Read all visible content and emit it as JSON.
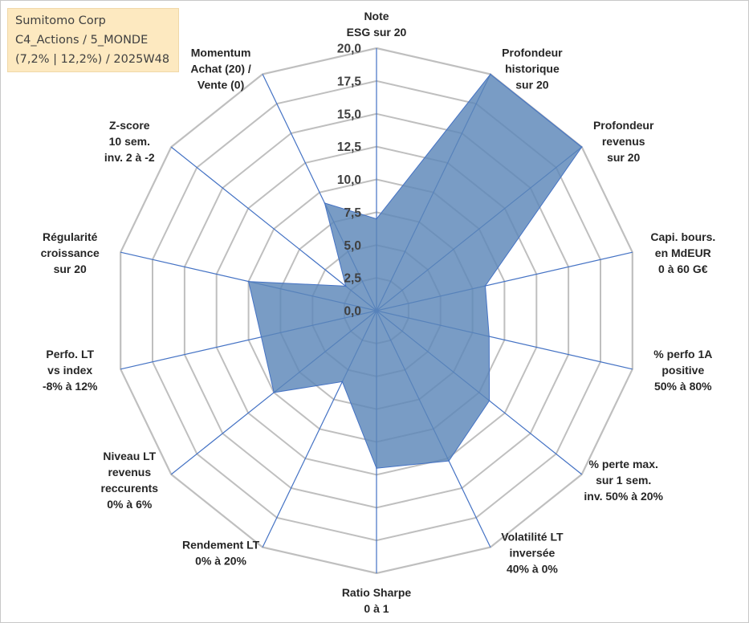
{
  "info_box": {
    "line1": "Sumitomo Corp",
    "line2": "C4_Actions / 5_MONDE",
    "line3": "(7,2% | 12,2%) / 2025W48"
  },
  "colors": {
    "fill": "#5b86b8",
    "stroke": "#4472c4",
    "spoke": "#4472c4",
    "grid": "#bfbfbf",
    "info_bg": "#fde9c0"
  },
  "chart_data": {
    "type": "radar",
    "rmin": 0,
    "rmax": 20,
    "ticks": [
      "0,0",
      "2,5",
      "5,0",
      "7,5",
      "10,0",
      "12,5",
      "15,0",
      "17,5",
      "20,0"
    ],
    "axes": [
      {
        "label": [
          "Note",
          "ESG sur 20"
        ],
        "value": 7.0
      },
      {
        "label": [
          "Profondeur",
          "historique",
          "sur 20"
        ],
        "value": 20.0
      },
      {
        "label": [
          "Profondeur",
          "revenus",
          "sur 20"
        ],
        "value": 20.0
      },
      {
        "label": [
          "Capi. bours.",
          "en MdEUR",
          "0 à 60 G€"
        ],
        "value": 8.5
      },
      {
        "label": [
          "% perfo 1A",
          "positive",
          "50% à 80%"
        ],
        "value": 8.8
      },
      {
        "label": [
          "% perte max.",
          "sur 1 sem.",
          "inv. 50% à 20%"
        ],
        "value": 11.0
      },
      {
        "label": [
          "Volatilité LT",
          "inversée",
          "40% à 0%"
        ],
        "value": 12.7
      },
      {
        "label": [
          "Ratio Sharpe",
          "0 à 1"
        ],
        "value": 12.0
      },
      {
        "label": [
          "Rendement LT",
          "0% à 20%"
        ],
        "value": 6.0
      },
      {
        "label": [
          "Niveau LT",
          "revenus",
          "reccurents",
          "0% à 6%"
        ],
        "value": 10.0
      },
      {
        "label": [
          "Perfo. LT",
          "vs index",
          "-8% à 12%"
        ],
        "value": 9.0
      },
      {
        "label": [
          "Régularité",
          "croissance",
          "sur 20"
        ],
        "value": 10.0
      },
      {
        "label": [
          "Z-score",
          "10 sem.",
          "inv. 2 à -2"
        ],
        "value": 3.0
      },
      {
        "label": [
          "Momentum",
          "Achat (20) /",
          "Vente (0)"
        ],
        "value": 9.1
      }
    ]
  }
}
